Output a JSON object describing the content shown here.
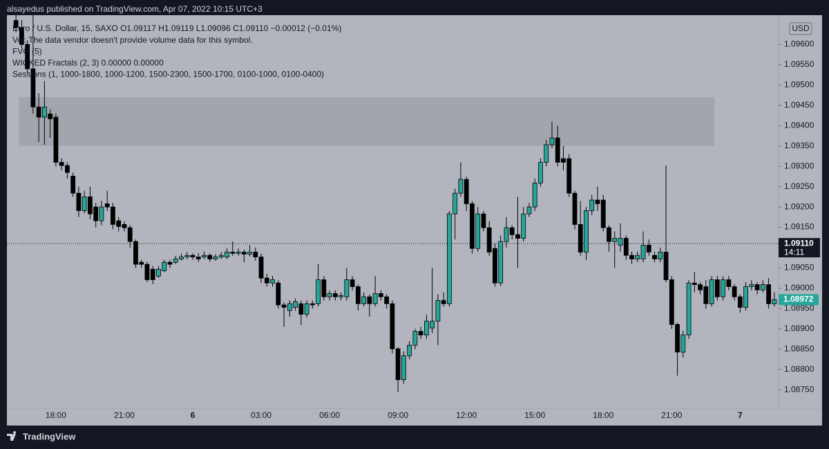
{
  "header": {
    "published": "alsayedus published on TradingView.com, Apr 07, 2022 10:15 UTC+3"
  },
  "footer": {
    "brand": "TradingView"
  },
  "chart_data": {
    "type": "candlestick",
    "legend_lines": [
      "Euro / U.S. Dollar, 15, SAXO  O1.09117  H1.09119  L1.09096  C1.09110  −0.00012 (−0.01%)",
      "Vol: The data vendor doesn't provide volume data for this symbol.",
      "FVG (5)",
      "WICKED Fractals (2, 3)  0.00000  0.00000",
      "Sessions (1, 1000-1800, 1000-1200, 1500-2300, 1500-1700, 0100-1000, 0100-0400)"
    ],
    "currency": "USD",
    "up_color": "#26a69a",
    "down_color": "#000000",
    "categories": [
      null,
      null,
      null,
      null,
      null,
      null,
      null,
      "18:00",
      null,
      null,
      null,
      null,
      null,
      null,
      null,
      null,
      null,
      null,
      null,
      "21:00",
      null,
      null,
      null,
      null,
      null,
      null,
      null,
      null,
      null,
      null,
      null,
      "6",
      null,
      null,
      null,
      null,
      null,
      null,
      null,
      null,
      null,
      null,
      null,
      "03:00",
      null,
      null,
      null,
      null,
      null,
      null,
      null,
      null,
      null,
      null,
      null,
      "06:00",
      null,
      null,
      null,
      null,
      null,
      null,
      null,
      null,
      null,
      null,
      null,
      "09:00",
      null,
      null,
      null,
      null,
      null,
      null,
      null,
      null,
      null,
      null,
      null,
      "12:00",
      null,
      null,
      null,
      null,
      null,
      null,
      null,
      null,
      null,
      null,
      null,
      "15:00",
      null,
      null,
      null,
      null,
      null,
      null,
      null,
      null,
      null,
      null,
      null,
      "18:00",
      null,
      null,
      null,
      null,
      null,
      null,
      null,
      null,
      null,
      null,
      null,
      "21:00",
      null,
      null,
      null,
      null,
      null,
      null,
      null,
      null,
      null,
      null,
      null,
      "7",
      null,
      null,
      null,
      null,
      null,
      null
    ],
    "bold_categories": [
      "6",
      "7"
    ],
    "open": [
      1.09659,
      1.09642,
      1.096,
      1.0954,
      1.09446,
      1.09421,
      1.09429,
      1.09421,
      1.0931,
      1.09302,
      1.09276,
      1.09234,
      1.09191,
      1.09225,
      1.092,
      1.09166,
      1.09208,
      1.092,
      1.09166,
      1.09157,
      1.09149,
      1.09115,
      1.09064,
      1.09059,
      1.09047,
      1.0903,
      1.09043,
      1.09064,
      1.09064,
      1.09072,
      1.09077,
      1.09081,
      1.09077,
      1.09077,
      1.09081,
      1.09072,
      1.09077,
      1.09077,
      1.09089,
      1.09086,
      1.09089,
      1.09084,
      1.09089,
      1.09077,
      1.09025,
      1.09013,
      1.09013,
      1.08959,
      1.08945,
      1.08953,
      1.08962,
      1.08936,
      1.08962,
      1.08962,
      1.09021,
      1.08979,
      1.08987,
      1.08979,
      1.08979,
      1.09021,
      1.09004,
      1.08962,
      1.08979,
      1.08962,
      1.08987,
      1.08979,
      1.08962,
      1.08851,
      1.08775,
      1.08834,
      1.0886,
      1.08894,
      1.08885,
      1.08902,
      1.08919,
      1.0897,
      1.08962,
      1.09183,
      1.09234,
      1.09268,
      1.09208,
      1.09098,
      1.09183,
      1.09149,
      1.09098,
      1.09013,
      1.09115,
      1.09149,
      1.09132,
      1.09123,
      1.09183,
      1.092,
      1.09259,
      1.0931,
      1.09353,
      1.0937,
      1.09319,
      1.09319,
      1.09234,
      1.09157,
      1.09089,
      1.09191,
      1.09217,
      1.09217,
      1.09149,
      1.09115,
      1.09106,
      1.09123,
      1.09081,
      1.09072,
      1.09072,
      1.09106,
      1.09081,
      1.09072,
      1.09089,
      1.09021,
      1.08911,
      1.08843,
      1.08885,
      1.09013,
      1.09009,
      1.09004,
      1.08962,
      1.09021,
      1.08979,
      1.09021,
      1.09004,
      1.08979,
      1.08953,
      1.09004,
      1.09009,
      1.08996,
      1.09009,
      1.08962
    ],
    "high": [
      1.09672,
      1.0966,
      1.0961,
      1.09672,
      1.0948,
      1.0951,
      1.0944,
      1.0943,
      1.0932,
      1.0931,
      1.09285,
      1.0925,
      1.0924,
      1.0925,
      1.0921,
      1.09215,
      1.0924,
      1.0921,
      1.09175,
      1.09165,
      1.09155,
      1.0912,
      1.0907,
      1.09065,
      1.09055,
      1.09055,
      1.0907,
      1.0907,
      1.0908,
      1.09085,
      1.09089,
      1.09086,
      1.09086,
      1.0909,
      1.09086,
      1.09084,
      1.09089,
      1.09098,
      1.09115,
      1.09098,
      1.09095,
      1.09106,
      1.091,
      1.09085,
      1.09035,
      1.0903,
      1.0902,
      1.08965,
      1.0897,
      1.08975,
      1.0897,
      1.0897,
      1.0897,
      1.0906,
      1.0903,
      1.08995,
      1.08995,
      1.0899,
      1.0905,
      1.0903,
      1.0901,
      1.0899,
      1.08985,
      1.0903,
      1.08995,
      1.08985,
      1.0897,
      1.08855,
      1.08845,
      1.0887,
      1.089,
      1.08905,
      1.08935,
      1.0905,
      1.08985,
      1.0899,
      1.0919,
      1.09245,
      1.0931,
      1.09275,
      1.09215,
      1.092,
      1.0919,
      1.09165,
      1.0911,
      1.0913,
      1.09175,
      1.09155,
      1.09225,
      1.092,
      1.0921,
      1.0927,
      1.0932,
      1.09365,
      1.0941,
      1.094,
      1.0935,
      1.0933,
      1.0924,
      1.09215,
      1.092,
      1.0923,
      1.0925,
      1.0923,
      1.09155,
      1.0914,
      1.0916,
      1.0913,
      1.0909,
      1.0909,
      1.0914,
      1.0912,
      1.0909,
      1.091,
      1.09302,
      1.0903,
      1.08915,
      1.08895,
      1.0902,
      1.0904,
      1.09015,
      1.0902,
      1.0903,
      1.0903,
      1.0903,
      1.0903,
      1.0901,
      1.08985,
      1.09015,
      1.0902,
      1.09015,
      1.0902,
      1.09025,
      1.0899
    ],
    "low": [
      1.0963,
      1.0959,
      1.0953,
      1.0943,
      1.0936,
      1.09353,
      1.0937,
      1.093,
      1.0929,
      1.0927,
      1.09225,
      1.09175,
      1.09185,
      1.0917,
      1.0915,
      1.09155,
      1.0919,
      1.09145,
      1.0914,
      1.0914,
      1.091,
      1.0905,
      1.0905,
      1.09015,
      1.0901,
      1.09025,
      1.0904,
      1.0905,
      1.0906,
      1.09068,
      1.09072,
      1.0907,
      1.09065,
      1.09072,
      1.09065,
      1.09068,
      1.09072,
      1.09072,
      1.0908,
      1.0908,
      1.09064,
      1.09078,
      1.09068,
      1.09013,
      1.09004,
      1.09004,
      1.0895,
      1.08905,
      1.0893,
      1.08945,
      1.0891,
      1.08928,
      1.0895,
      1.08955,
      1.0897,
      1.0897,
      1.0897,
      1.0897,
      1.0897,
      1.08995,
      1.08945,
      1.08955,
      1.0893,
      1.08955,
      1.0897,
      1.0895,
      1.0884,
      1.08745,
      1.08765,
      1.08825,
      1.0885,
      1.08875,
      1.08875,
      1.0889,
      1.0886,
      1.08955,
      1.08955,
      1.0912,
      1.09225,
      1.0919,
      1.09085,
      1.0909,
      1.0914,
      1.0908,
      1.09004,
      1.09005,
      1.091,
      1.0912,
      1.0905,
      1.09115,
      1.09175,
      1.0919,
      1.0925,
      1.093,
      1.09345,
      1.093,
      1.0929,
      1.09225,
      1.09145,
      1.0908,
      1.0907,
      1.0918,
      1.0919,
      1.0914,
      1.0909,
      1.0905,
      1.0909,
      1.0907,
      1.0906,
      1.09064,
      1.09064,
      1.0908,
      1.09064,
      1.09064,
      1.09015,
      1.089,
      1.08785,
      1.0883,
      1.08875,
      1.0899,
      1.08985,
      1.0895,
      1.08955,
      1.0897,
      1.0897,
      1.08995,
      1.0897,
      1.0894,
      1.08945,
      1.08995,
      1.08985,
      1.0899,
      1.0895,
      1.08955
    ],
    "close": [
      1.09642,
      1.096,
      1.0954,
      1.09446,
      1.09421,
      1.09446,
      1.09417,
      1.0931,
      1.09302,
      1.09285,
      1.09234,
      1.09191,
      1.09225,
      1.09183,
      1.09166,
      1.092,
      1.092,
      1.09157,
      1.09152,
      1.09149,
      1.09115,
      1.09059,
      1.09059,
      1.09021,
      1.09021,
      1.09047,
      1.09064,
      1.09059,
      1.09072,
      1.09077,
      1.09081,
      1.09077,
      1.09072,
      1.09081,
      1.09072,
      1.09077,
      1.09081,
      1.09089,
      1.09086,
      1.09089,
      1.09084,
      1.09089,
      1.09077,
      1.09025,
      1.09013,
      1.09021,
      1.08959,
      1.08953,
      1.08962,
      1.08967,
      1.08936,
      1.08962,
      1.08959,
      1.09021,
      1.08979,
      1.08987,
      1.08979,
      1.08982,
      1.09021,
      1.09004,
      1.08962,
      1.08979,
      1.08962,
      1.08987,
      1.08979,
      1.08962,
      1.08851,
      1.08775,
      1.08834,
      1.0886,
      1.08894,
      1.08885,
      1.08919,
      1.08919,
      1.0897,
      1.08962,
      1.09183,
      1.09234,
      1.09268,
      1.09208,
      1.09098,
      1.09183,
      1.09149,
      1.09089,
      1.09013,
      1.09115,
      1.09149,
      1.09132,
      1.09123,
      1.09183,
      1.092,
      1.09259,
      1.0931,
      1.09353,
      1.0937,
      1.0931,
      1.0931,
      1.09234,
      1.09157,
      1.09089,
      1.09191,
      1.09217,
      1.09208,
      1.09149,
      1.09115,
      1.09123,
      1.09123,
      1.09081,
      1.09072,
      1.09081,
      1.09106,
      1.09089,
      1.09072,
      1.09089,
      1.09021,
      1.08911,
      1.08843,
      1.08885,
      1.09013,
      1.09009,
      1.08996,
      1.08962,
      1.09021,
      1.08979,
      1.09021,
      1.09004,
      1.08979,
      1.08953,
      1.09004,
      1.09009,
      1.08996,
      1.09009,
      1.08962,
      1.08972
    ],
    "fvg_zone": {
      "start": 1,
      "end": 122,
      "high": 1.0947,
      "low": 1.0935
    },
    "ylim": [
      1.08708,
      1.09672
    ],
    "yticks": [
      {
        "value": 1.0875,
        "label": "1.08750"
      },
      {
        "value": 1.088,
        "label": "1.08800"
      },
      {
        "value": 1.0885,
        "label": "1.08850"
      },
      {
        "value": 1.089,
        "label": "1.08900"
      },
      {
        "value": 1.0895,
        "label": "1.08950"
      },
      {
        "value": 1.09,
        "label": "1.09000"
      },
      {
        "value": 1.0905,
        "label": "1.09050"
      },
      {
        "value": 1.091,
        "label": "1.09100"
      },
      {
        "value": 1.0915,
        "label": "1.09150"
      },
      {
        "value": 1.092,
        "label": "1.09200"
      },
      {
        "value": 1.0925,
        "label": "1.09250"
      },
      {
        "value": 1.093,
        "label": "1.09300"
      },
      {
        "value": 1.0935,
        "label": "1.09350"
      },
      {
        "value": 1.094,
        "label": "1.09400"
      },
      {
        "value": 1.0945,
        "label": "1.09450"
      },
      {
        "value": 1.095,
        "label": "1.09500"
      },
      {
        "value": 1.0955,
        "label": "1.09550"
      },
      {
        "value": 1.096,
        "label": "1.09600"
      }
    ],
    "crosshair": {
      "value": 1.0911,
      "label": "1.09110",
      "time": "14:11"
    },
    "last_price": {
      "value": 1.08972,
      "label": "1.08972"
    },
    "grid": false
  }
}
